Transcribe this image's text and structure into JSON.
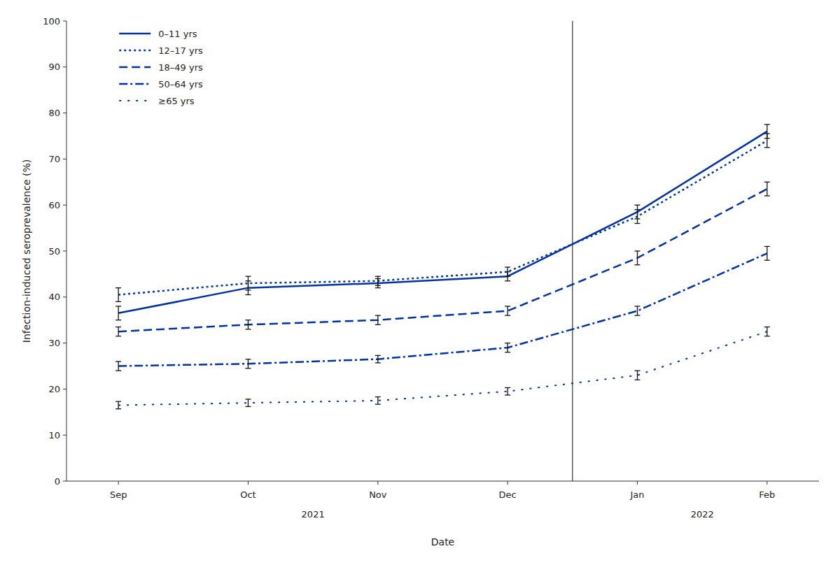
{
  "chart_data": {
    "type": "line",
    "xlabel": "Date",
    "ylabel": "Infection-induced seroprevalence (%)",
    "categories": [
      "Sep",
      "Oct",
      "Nov",
      "Dec",
      "Jan",
      "Feb"
    ],
    "series": [
      {
        "name": "0–11 yrs",
        "color": "#0033a0",
        "line_style": "solid",
        "values": [
          36.5,
          42.0,
          43.0,
          44.5,
          58.5,
          76.0
        ],
        "errors": [
          1.5,
          1.5,
          1.0,
          1.0,
          1.5,
          1.5
        ]
      },
      {
        "name": "12–17 yrs",
        "color": "#0033a0",
        "line_style": "dotted",
        "values": [
          40.5,
          43.0,
          43.5,
          45.5,
          57.5,
          74.0
        ],
        "errors": [
          1.5,
          1.5,
          1.0,
          1.0,
          1.5,
          1.5
        ]
      },
      {
        "name": "18–49 yrs",
        "color": "#0033a0",
        "line_style": "dashed",
        "values": [
          32.5,
          34.0,
          35.0,
          37.0,
          48.5,
          63.5
        ],
        "errors": [
          1.0,
          1.0,
          1.0,
          1.0,
          1.5,
          1.5
        ]
      },
      {
        "name": "50–64 yrs",
        "color": "#0033a0",
        "line_style": "dashdot",
        "values": [
          25.0,
          25.5,
          26.5,
          29.0,
          37.0,
          49.5
        ],
        "errors": [
          1.0,
          1.0,
          0.8,
          1.0,
          1.0,
          1.5
        ]
      },
      {
        "name": "≥65 yrs",
        "color": "#0033a0",
        "line_style": "loosely dotted",
        "values": [
          16.5,
          17.0,
          17.5,
          19.5,
          23.0,
          32.5
        ],
        "errors": [
          0.8,
          0.8,
          0.8,
          0.8,
          1.0,
          1.0
        ]
      }
    ],
    "annotations": [
      "2021",
      "2022"
    ],
    "ylim": [
      0,
      100
    ],
    "yticks": [
      0,
      10,
      20,
      30,
      40,
      50,
      60,
      70,
      80,
      90,
      100
    ],
    "grid": false,
    "legend": "upper left"
  }
}
